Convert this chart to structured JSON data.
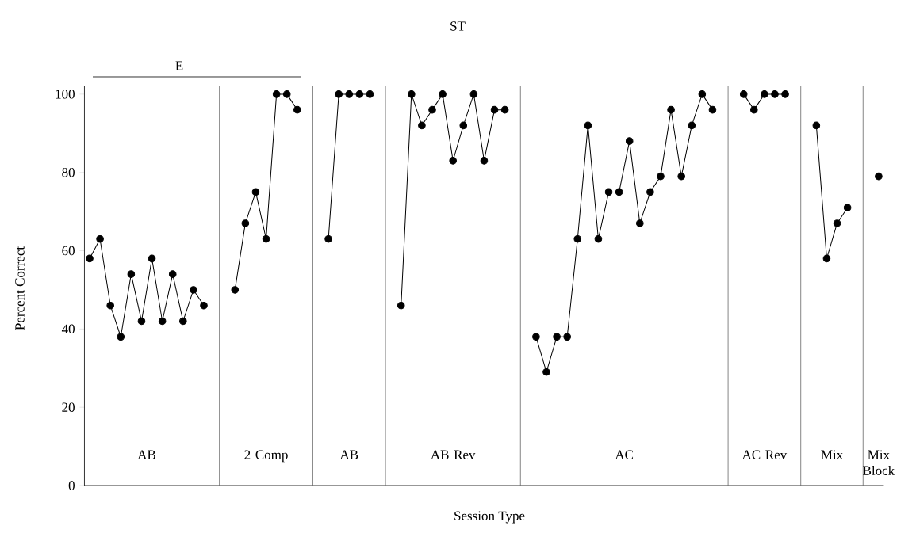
{
  "chart_data": {
    "type": "line",
    "title": "ST",
    "xlabel": "Session Type",
    "ylabel": "Percent Correct",
    "categories": [
      null,
      null,
      null,
      null,
      null,
      null,
      null,
      null,
      null,
      null,
      null,
      null,
      null,
      null,
      null,
      null,
      null,
      null,
      null,
      null,
      null,
      null,
      null,
      null,
      null,
      null,
      null,
      null,
      null,
      null,
      null,
      null,
      null,
      null,
      null,
      null,
      null,
      null,
      null,
      null,
      null,
      null,
      null,
      null,
      null,
      null,
      null,
      null,
      null,
      null,
      null,
      null,
      null,
      null,
      null,
      null,
      null,
      null,
      null,
      null,
      null,
      null,
      null,
      null,
      null,
      null,
      null,
      null,
      null,
      null,
      null,
      null,
      null,
      null,
      null,
      null,
      null
    ],
    "ylim": [
      0,
      102
    ],
    "yticks": [
      0,
      20,
      40,
      60,
      80,
      100
    ],
    "tick_labels": "y",
    "marker": "circle",
    "line_style": "solid",
    "series": [
      {
        "color": "#000000",
        "values": [
          58,
          63,
          46,
          38,
          54,
          42,
          58,
          42,
          54,
          42,
          50,
          46,
          null,
          null,
          null,
          null,
          null,
          null,
          null,
          null,
          null,
          null,
          null,
          null,
          null,
          null,
          null,
          null,
          null,
          null,
          null,
          null,
          null,
          null,
          null,
          null,
          null,
          null,
          null,
          null,
          null,
          null,
          null,
          null,
          null,
          null,
          null,
          null,
          null,
          null,
          null,
          null,
          null,
          null,
          null,
          null,
          null,
          null,
          null,
          null,
          null,
          null,
          null,
          null,
          null,
          null,
          null,
          null,
          null,
          null,
          null,
          null,
          null,
          null,
          null,
          null,
          null
        ]
      },
      {
        "color": "#000000",
        "values": [
          null,
          null,
          null,
          null,
          null,
          null,
          null,
          null,
          null,
          null,
          null,
          null,
          null,
          null,
          50,
          67,
          75,
          63,
          100,
          100,
          96,
          null,
          null,
          null,
          null,
          null,
          null,
          null,
          null,
          null,
          null,
          null,
          null,
          null,
          null,
          null,
          null,
          null,
          null,
          null,
          null,
          null,
          null,
          null,
          null,
          null,
          null,
          null,
          null,
          null,
          null,
          null,
          null,
          null,
          null,
          null,
          null,
          null,
          null,
          null,
          null,
          null,
          null,
          null,
          null,
          null,
          null,
          null,
          null,
          null,
          null,
          null,
          null,
          null,
          null,
          null,
          null
        ]
      },
      {
        "color": "#000000",
        "values": [
          null,
          null,
          null,
          null,
          null,
          null,
          null,
          null,
          null,
          null,
          null,
          null,
          null,
          null,
          null,
          null,
          null,
          null,
          null,
          null,
          null,
          null,
          null,
          63,
          100,
          100,
          100,
          100,
          null,
          null,
          null,
          null,
          null,
          null,
          null,
          null,
          null,
          null,
          null,
          null,
          null,
          null,
          null,
          null,
          null,
          null,
          null,
          null,
          null,
          null,
          null,
          null,
          null,
          null,
          null,
          null,
          null,
          null,
          null,
          null,
          null,
          null,
          null,
          null,
          null,
          null,
          null,
          null,
          null,
          null,
          null,
          null,
          null,
          null,
          null,
          null,
          null
        ]
      },
      {
        "color": "#000000",
        "values": [
          null,
          null,
          null,
          null,
          null,
          null,
          null,
          null,
          null,
          null,
          null,
          null,
          null,
          null,
          null,
          null,
          null,
          null,
          null,
          null,
          null,
          null,
          null,
          null,
          null,
          null,
          null,
          null,
          null,
          null,
          46,
          100,
          92,
          96,
          100,
          83,
          92,
          100,
          83,
          96,
          96,
          null,
          null,
          null,
          null,
          null,
          null,
          null,
          null,
          null,
          null,
          null,
          null,
          null,
          null,
          null,
          null,
          null,
          null,
          null,
          null,
          null,
          null,
          null,
          null,
          null,
          null,
          null,
          null,
          null,
          null,
          null,
          null,
          null,
          null,
          null,
          null
        ]
      },
      {
        "color": "#000000",
        "values": [
          null,
          null,
          null,
          null,
          null,
          null,
          null,
          null,
          null,
          null,
          null,
          null,
          null,
          null,
          null,
          null,
          null,
          null,
          null,
          null,
          null,
          null,
          null,
          null,
          null,
          null,
          null,
          null,
          null,
          null,
          null,
          null,
          null,
          null,
          null,
          null,
          null,
          null,
          null,
          null,
          null,
          null,
          null,
          38,
          29,
          38,
          38,
          63,
          92,
          63,
          75,
          75,
          88,
          67,
          75,
          79,
          96,
          79,
          92,
          100,
          96,
          null,
          null,
          null,
          null,
          null,
          null,
          null,
          null,
          null,
          null,
          null,
          null,
          null,
          null,
          null,
          null
        ]
      },
      {
        "color": "#000000",
        "values": [
          null,
          null,
          null,
          null,
          null,
          null,
          null,
          null,
          null,
          null,
          null,
          null,
          null,
          null,
          null,
          null,
          null,
          null,
          null,
          null,
          null,
          null,
          null,
          null,
          null,
          null,
          null,
          null,
          null,
          null,
          null,
          null,
          null,
          null,
          null,
          null,
          null,
          null,
          null,
          null,
          null,
          null,
          null,
          null,
          null,
          null,
          null,
          null,
          null,
          null,
          null,
          null,
          null,
          null,
          null,
          null,
          null,
          null,
          null,
          null,
          null,
          null,
          null,
          100,
          96,
          100,
          100,
          100,
          null,
          null,
          null,
          null,
          null,
          null,
          null,
          null,
          null
        ]
      },
      {
        "color": "#000000",
        "values": [
          null,
          null,
          null,
          null,
          null,
          null,
          null,
          null,
          null,
          null,
          null,
          null,
          null,
          null,
          null,
          null,
          null,
          null,
          null,
          null,
          null,
          null,
          null,
          null,
          null,
          null,
          null,
          null,
          null,
          null,
          null,
          null,
          null,
          null,
          null,
          null,
          null,
          null,
          null,
          null,
          null,
          null,
          null,
          null,
          null,
          null,
          null,
          null,
          null,
          null,
          null,
          null,
          null,
          null,
          null,
          null,
          null,
          null,
          null,
          null,
          null,
          null,
          null,
          null,
          null,
          null,
          null,
          null,
          null,
          null,
          92,
          58,
          67,
          71,
          null,
          null,
          null
        ]
      },
      {
        "color": "#000000",
        "values": [
          null,
          null,
          null,
          null,
          null,
          null,
          null,
          null,
          null,
          null,
          null,
          null,
          null,
          null,
          null,
          null,
          null,
          null,
          null,
          null,
          null,
          null,
          null,
          null,
          null,
          null,
          null,
          null,
          null,
          null,
          null,
          null,
          null,
          null,
          null,
          null,
          null,
          null,
          null,
          null,
          null,
          null,
          null,
          null,
          null,
          null,
          null,
          null,
          null,
          null,
          null,
          null,
          null,
          null,
          null,
          null,
          null,
          null,
          null,
          null,
          null,
          null,
          null,
          null,
          null,
          null,
          null,
          null,
          null,
          null,
          null,
          null,
          null,
          null,
          null,
          null,
          79
        ]
      }
    ],
    "annotations": [
      "E",
      "AB",
      "2 Comp",
      "AB",
      "AB Rev",
      "AC",
      "AC Rev",
      "Mix",
      "Mix Block"
    ]
  }
}
